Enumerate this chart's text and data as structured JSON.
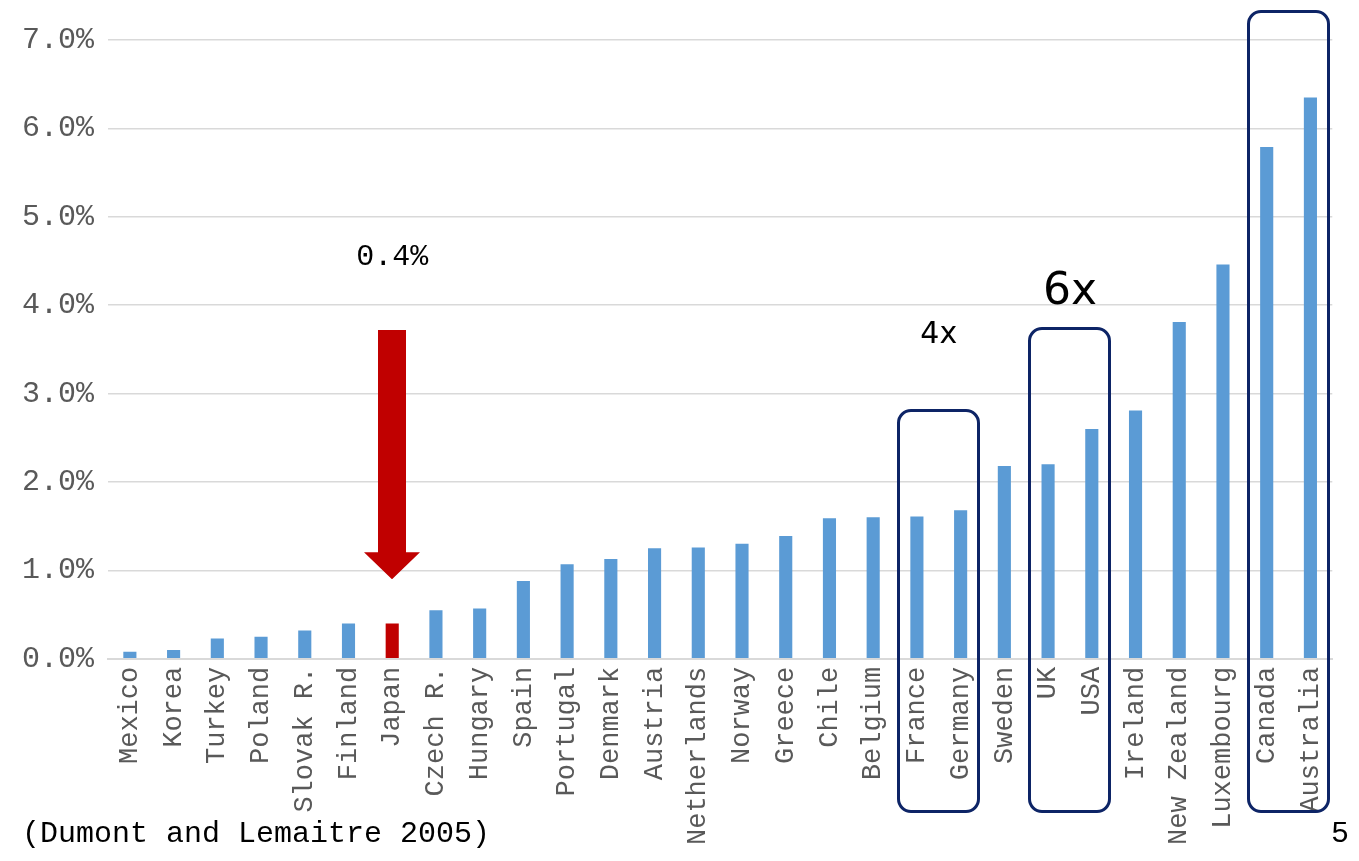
{
  "chart_data": {
    "type": "bar",
    "categories": [
      "Mexico",
      "Korea",
      "Turkey",
      "Poland",
      "Slovak R.",
      "Finland",
      "Japan",
      "Czech R.",
      "Hungary",
      "Spain",
      "Portugal",
      "Denmark",
      "Austria",
      "Netherlands",
      "Norway",
      "Greece",
      "Chile",
      "Belgium",
      "France",
      "Germany",
      "Sweden",
      "UK",
      "USA",
      "Ireland",
      "New Zealand",
      "Luxembourg",
      "Canada",
      "Australia"
    ],
    "values": [
      0.08,
      0.1,
      0.23,
      0.25,
      0.32,
      0.4,
      0.4,
      0.55,
      0.57,
      0.88,
      1.07,
      1.13,
      1.25,
      1.26,
      1.3,
      1.39,
      1.59,
      1.6,
      1.61,
      1.68,
      2.18,
      2.2,
      2.6,
      2.81,
      3.81,
      4.46,
      5.79,
      6.35
    ],
    "colors": [
      "#5b9bd5",
      "#5b9bd5",
      "#5b9bd5",
      "#5b9bd5",
      "#5b9bd5",
      "#5b9bd5",
      "#c00000",
      "#5b9bd5",
      "#5b9bd5",
      "#5b9bd5",
      "#5b9bd5",
      "#5b9bd5",
      "#5b9bd5",
      "#5b9bd5",
      "#5b9bd5",
      "#5b9bd5",
      "#5b9bd5",
      "#5b9bd5",
      "#5b9bd5",
      "#5b9bd5",
      "#5b9bd5",
      "#5b9bd5",
      "#5b9bd5",
      "#5b9bd5",
      "#5b9bd5",
      "#5b9bd5",
      "#5b9bd5",
      "#5b9bd5"
    ],
    "ylim": [
      0,
      7
    ],
    "yticks": [
      {
        "value": 0,
        "label": "0.0%"
      },
      {
        "value": 1,
        "label": "1.0%"
      },
      {
        "value": 2,
        "label": "2.0%"
      },
      {
        "value": 3,
        "label": "3.0%"
      },
      {
        "value": 4,
        "label": "4.0%"
      },
      {
        "value": 5,
        "label": "5.0%"
      },
      {
        "value": 6,
        "label": "6.0%"
      },
      {
        "value": 7,
        "label": "7.0%"
      }
    ],
    "grid": "y",
    "legend": false,
    "annotations": [
      "0.4%",
      "4x",
      "6x",
      "(Dumont and Lemaitre 2005)",
      "5"
    ]
  }
}
